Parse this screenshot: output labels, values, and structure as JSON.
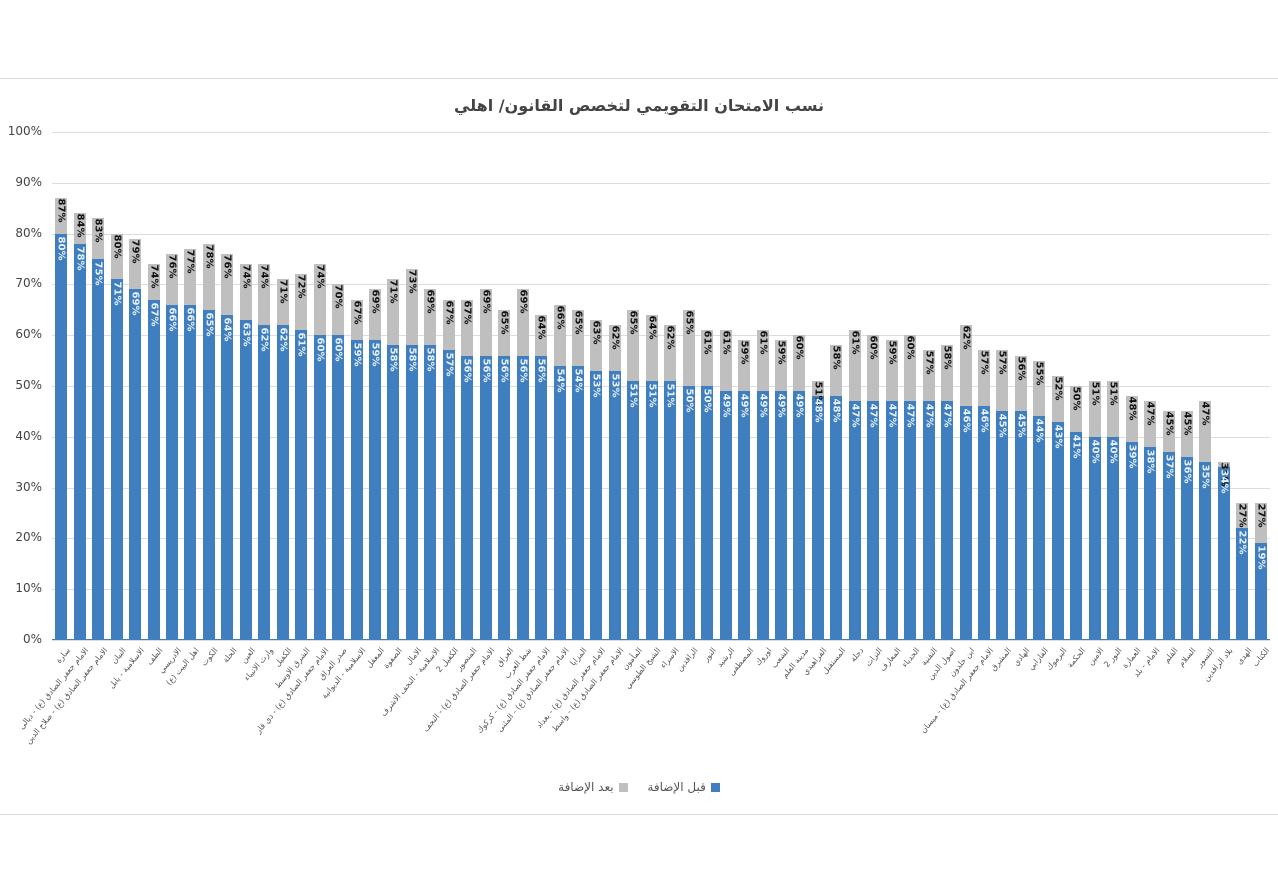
{
  "chart_data": {
    "type": "bar",
    "stacked": "overlap",
    "title": "نسب الامتحان التقويمي لتخصص القانون/ اهلي",
    "xlabel": "",
    "ylabel": "",
    "ylim": [
      0,
      100
    ],
    "yticks": [
      "0%",
      "10%",
      "20%",
      "30%",
      "40%",
      "50%",
      "60%",
      "70%",
      "80%",
      "90%",
      "100%"
    ],
    "grid": true,
    "legend_position": "bottom",
    "legend": [
      {
        "name": "قبل الإضافة",
        "color": "#3f7fbf"
      },
      {
        "name": "بعد الإضافة",
        "color": "#bfbfbf"
      }
    ],
    "categories": [
      "سارة",
      "الامام جعفر الصادق (ع) - ديالى",
      "الامام جعفر الصادق (ع) - صلاح الدين",
      "البيان",
      "الاسلامية - بابل",
      "الطف",
      "الادريسي",
      "اهل البيت (ع)",
      "الكوت",
      "الحلة",
      "العين",
      "وارث الانبياء",
      "الكفيل",
      "الشرق الاوسط",
      "الامام جعفر الصادق (ع) - ذي قار",
      "صدر العراق",
      "الاسلامية - الديوانية",
      "المعقل",
      "الصفوة",
      "الامال",
      "الاسلامية - النجف الاشرف",
      "الكفيل 2",
      "المنصور",
      "الامام جعفر الصادق (ع) - النجف",
      "العراق",
      "شط العرب",
      "الامام جعفر الصادق (ع) - كركوك",
      "الامام جعفر الصادق (ع) - المثنى",
      "المزايا",
      "الامام جعفر الصادق (ع) - بغداد",
      "الامام جعفر الصادق (ع) - واسط",
      "المأمون",
      "الشيخ الطوسي",
      "الاسراء",
      "الرافدين",
      "النور",
      "الرشيد",
      "المصطفى",
      "اوروك",
      "الشعب",
      "مدينة العلم",
      "الفراهيدي",
      "المستقبل",
      "دجلة",
      "التراث",
      "المعارف",
      "الحدباء",
      "التقنية",
      "اصول الدين",
      "ابن خلدون",
      "الامام جعفر الصادق (ع) - ميسان",
      "المشرق",
      "الهادي",
      "الفارابي",
      "اليرموك",
      "الحكمة",
      "الامين",
      "النور 2",
      "العمارة",
      "الامام - بلد",
      "القلم",
      "السلام",
      "التسور",
      "بلاد الرافدين",
      "الهدى",
      "الكتاب"
    ],
    "series": [
      {
        "name": "قبل الإضافة",
        "values": [
          80,
          78,
          75,
          71,
          69,
          67,
          66,
          66,
          65,
          64,
          63,
          62,
          62,
          61,
          60,
          60,
          59,
          59,
          58,
          58,
          58,
          57,
          56,
          56,
          56,
          56,
          56,
          54,
          54,
          53,
          53,
          51,
          51,
          51,
          50,
          50,
          49,
          49,
          49,
          49,
          49,
          48,
          48,
          47,
          47,
          47,
          47,
          47,
          47,
          46,
          46,
          45,
          45,
          44,
          43,
          41,
          40,
          40,
          39,
          38,
          37,
          36,
          35,
          34,
          22,
          19
        ]
      },
      {
        "name": "بعد الإضافة",
        "values": [
          87,
          84,
          83,
          80,
          79,
          74,
          76,
          77,
          78,
          76,
          74,
          74,
          71,
          72,
          74,
          70,
          67,
          69,
          71,
          73,
          69,
          67,
          67,
          69,
          65,
          69,
          64,
          66,
          65,
          63,
          62,
          65,
          64,
          62,
          65,
          61,
          61,
          59,
          61,
          59,
          60,
          51,
          58,
          61,
          60,
          59,
          60,
          57,
          58,
          62,
          57,
          57,
          56,
          55,
          52,
          50,
          51,
          51,
          48,
          47,
          45,
          45,
          47,
          35,
          27,
          27
        ]
      }
    ]
  }
}
